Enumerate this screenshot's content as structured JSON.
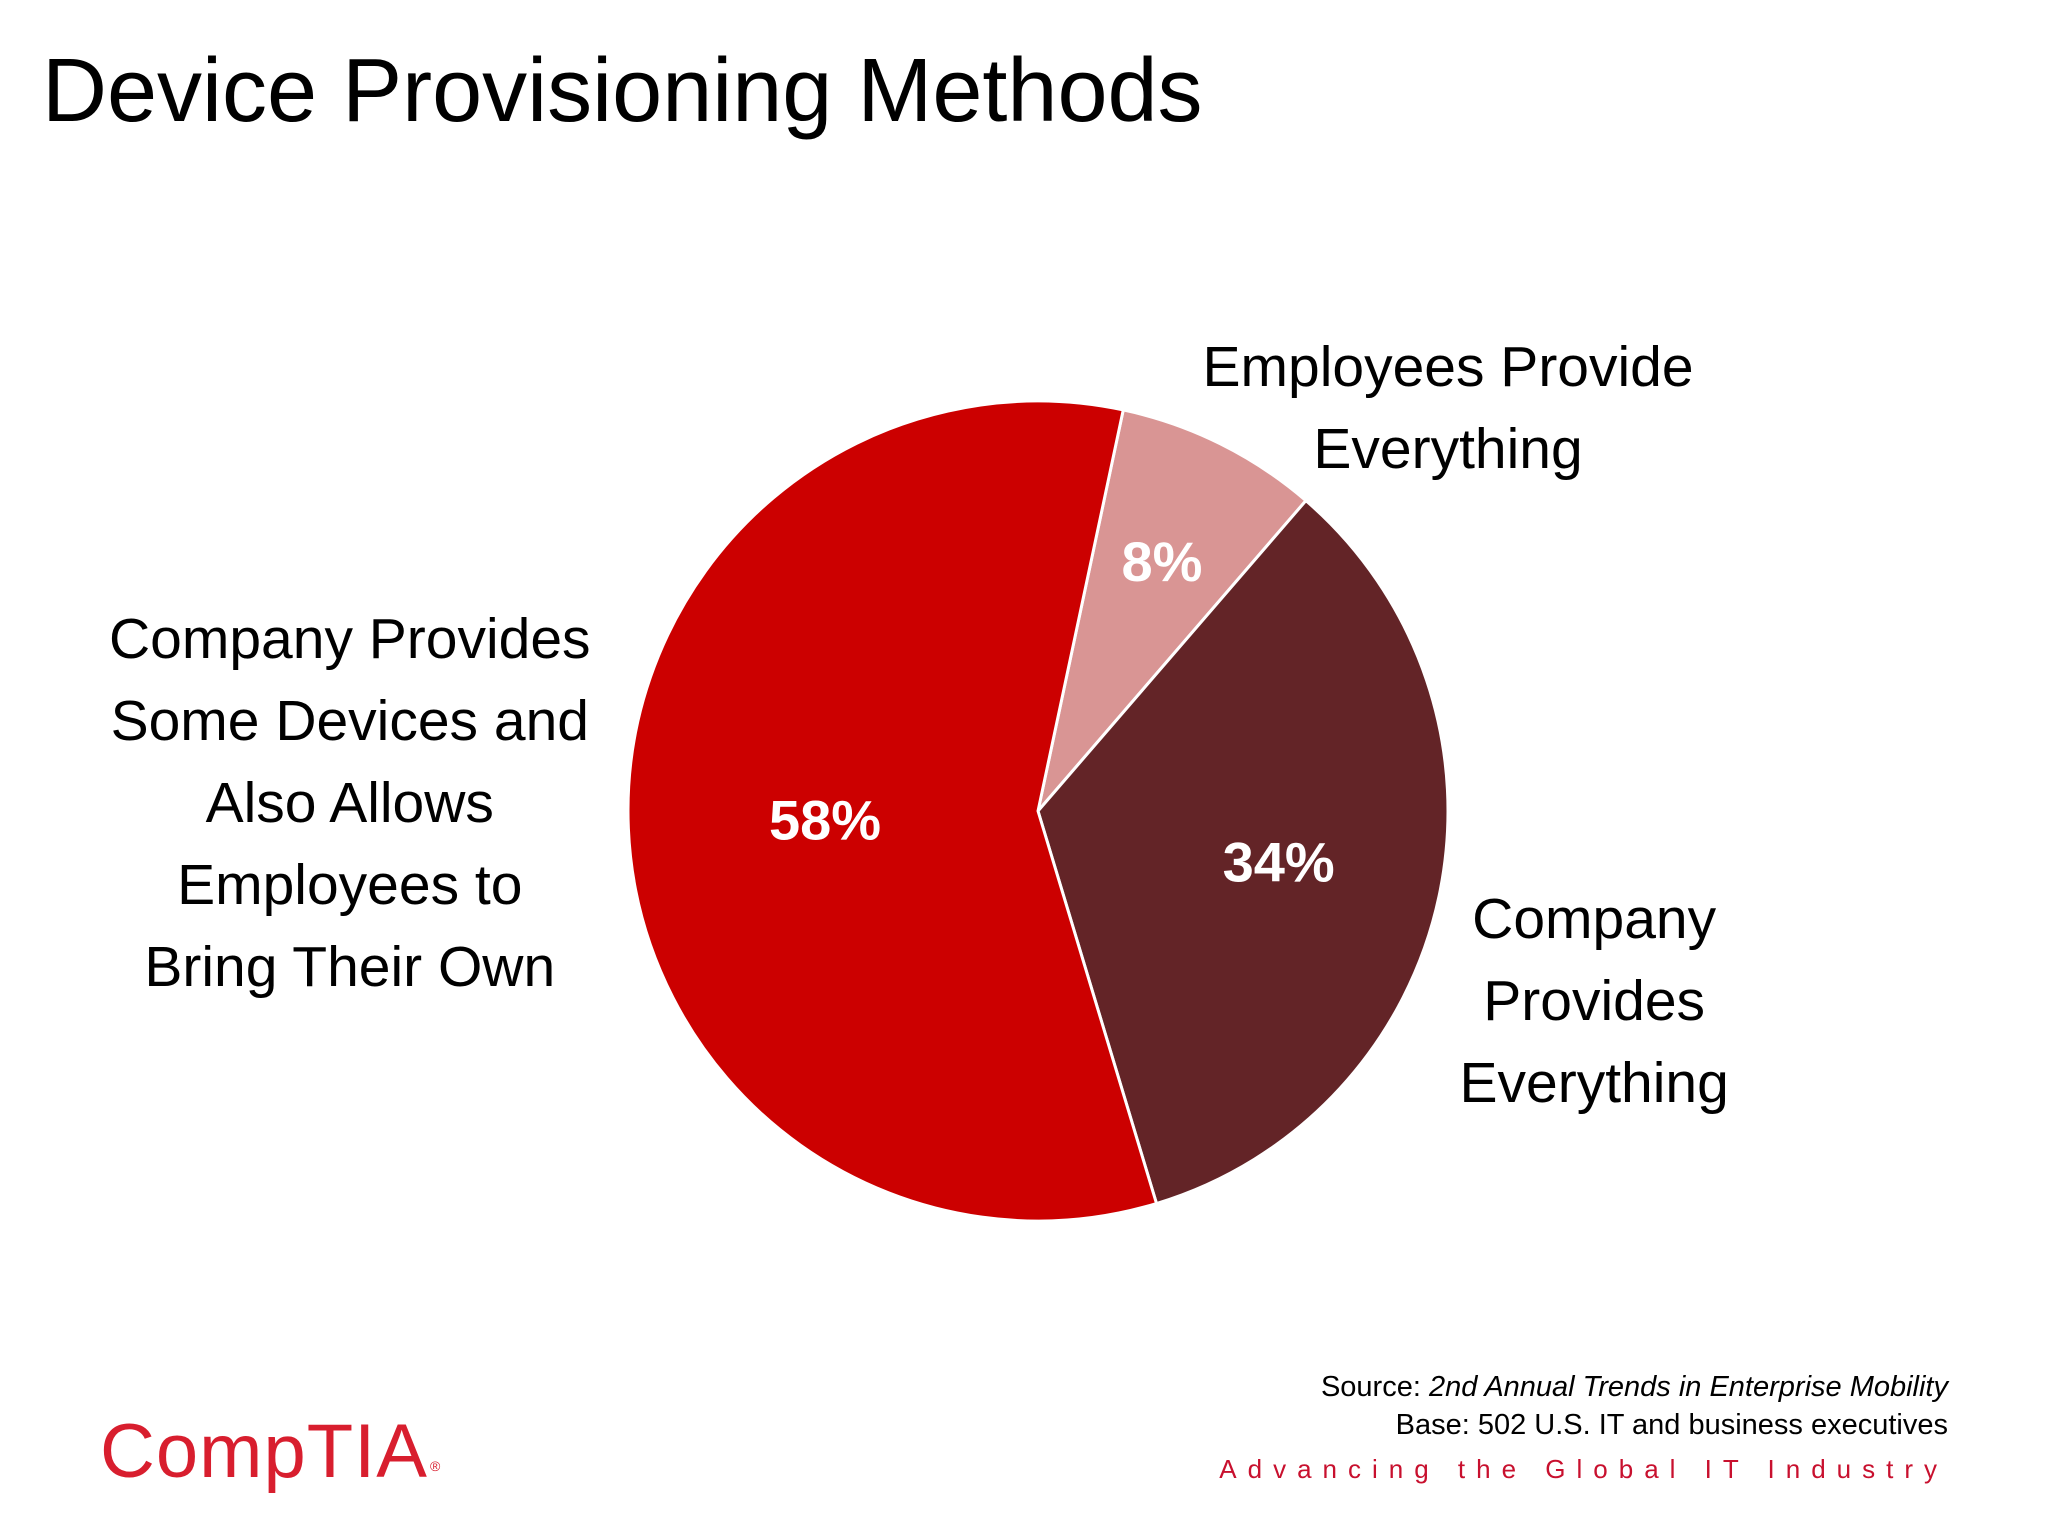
{
  "title": "Device Provisioning Methods",
  "chart_data": {
    "type": "pie",
    "categories": [
      "Employees Provide Everything",
      "Company Provides Everything",
      "Company Provides Some Devices and Also Allows Employees to Bring Their Own"
    ],
    "values": [
      8,
      34,
      58
    ],
    "value_labels": [
      "8%",
      "34%",
      "58%"
    ],
    "colors": [
      "#d99594",
      "#632427",
      "#cc0000"
    ],
    "category_label_lines": [
      [
        "Employees Provide",
        "Everything"
      ],
      [
        "Company",
        "Provides",
        "Everything"
      ],
      [
        "Company Provides",
        "Some Devices and",
        "Also Allows",
        "Employees to",
        "Bring Their Own"
      ]
    ]
  },
  "source": {
    "prefix": "Source: ",
    "title": "2nd Annual Trends in Enterprise Mobility",
    "base": "Base: 502 U.S. IT and business executives"
  },
  "tagline": "Advancing the Global IT Industry",
  "logo": {
    "text": "CompTIA",
    "mark": "®"
  }
}
